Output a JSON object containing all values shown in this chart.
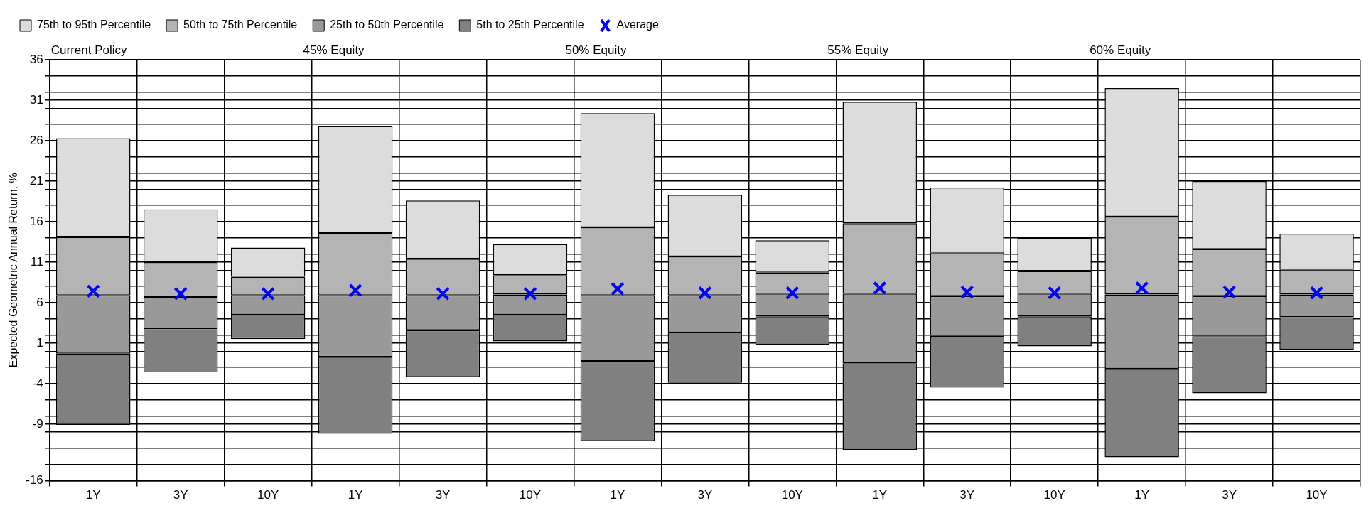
{
  "chart_data": {
    "type": "bar",
    "ylabel": "Expected Geometric Annual Return, %",
    "categories": [
      "1Y",
      "3Y",
      "10Y",
      "1Y",
      "3Y",
      "10Y",
      "1Y",
      "3Y",
      "10Y",
      "1Y",
      "3Y",
      "10Y",
      "1Y",
      "3Y",
      "10Y"
    ],
    "annotations": [
      "Current Policy",
      "45% Equity",
      "50% Equity",
      "55% Equity",
      "60% Equity"
    ],
    "series": [
      {
        "name": "75th to 95th Percentile",
        "color": "#dcdcdc",
        "base": [
          14.1,
          11.0,
          9.2,
          14.6,
          11.4,
          9.4,
          15.3,
          11.7,
          9.7,
          15.8,
          12.2,
          9.9,
          16.6,
          12.6,
          10.1
        ],
        "values": [
          12.2,
          6.5,
          3.6,
          13.2,
          7.2,
          3.8,
          14.1,
          7.6,
          4.0,
          15.0,
          8.0,
          4.1,
          15.9,
          8.4,
          4.4
        ]
      },
      {
        "name": "50th to 75th Percentile",
        "color": "#b4b4b4",
        "base": [
          6.9,
          6.7,
          6.9,
          6.9,
          6.9,
          7.0,
          6.9,
          6.9,
          7.1,
          7.1,
          6.8,
          7.1,
          7.0,
          6.8,
          7.0
        ],
        "values": [
          7.2,
          4.3,
          2.3,
          7.7,
          4.5,
          2.4,
          8.4,
          4.8,
          2.6,
          8.7,
          5.4,
          2.8,
          9.6,
          5.8,
          3.1
        ]
      },
      {
        "name": "25th to 50th Percentile",
        "color": "#999999",
        "base": [
          -0.3,
          2.7,
          4.5,
          -0.7,
          2.6,
          4.5,
          -1.2,
          2.3,
          4.3,
          -1.5,
          1.9,
          4.3,
          -2.2,
          1.8,
          4.2
        ],
        "values": [
          7.2,
          4.0,
          2.4,
          7.6,
          4.3,
          2.5,
          8.1,
          4.6,
          2.8,
          8.6,
          4.9,
          2.8,
          9.2,
          5.0,
          2.8
        ]
      },
      {
        "name": "5th to 25th Percentile",
        "color": "#808080",
        "base": [
          -9.1,
          -2.6,
          1.5,
          -10.2,
          -3.2,
          1.2,
          -11.1,
          -3.9,
          0.8,
          -12.2,
          -4.5,
          0.6,
          -13.1,
          -5.2,
          0.2
        ],
        "values": [
          8.8,
          5.3,
          3.0,
          9.5,
          5.8,
          3.3,
          9.9,
          6.2,
          3.5,
          10.7,
          6.4,
          3.7,
          10.9,
          7.0,
          4.0
        ]
      },
      {
        "name": "Average",
        "type": "scatter",
        "color": "#0000ff",
        "marker": "cross",
        "values": [
          7.4,
          7.1,
          7.1,
          7.5,
          7.1,
          7.1,
          7.7,
          7.2,
          7.2,
          7.8,
          7.3,
          7.2,
          7.8,
          7.3,
          7.2
        ]
      }
    ],
    "ylim": [
      -16,
      36
    ],
    "yticks": [
      -16,
      {
        "value": -14,
        "label": null
      },
      {
        "value": -12,
        "label": null
      },
      {
        "value": -10,
        "label": null
      },
      -9,
      {
        "value": -8,
        "label": null
      },
      {
        "value": -6,
        "label": null
      },
      -4,
      {
        "value": -2,
        "label": null
      },
      {
        "value": 0,
        "label": null
      },
      1,
      {
        "value": 2,
        "label": null
      },
      {
        "value": 4,
        "label": null
      },
      6,
      {
        "value": 8,
        "label": null
      },
      {
        "value": 10,
        "label": null
      },
      11,
      {
        "value": 12,
        "label": null
      },
      {
        "value": 14,
        "label": null
      },
      16,
      {
        "value": 18,
        "label": null
      },
      {
        "value": 20,
        "label": null
      },
      21,
      {
        "value": 22,
        "label": null
      },
      {
        "value": 24,
        "label": null
      },
      26,
      {
        "value": 28,
        "label": null
      },
      {
        "value": 30,
        "label": null
      },
      31,
      {
        "value": 32,
        "label": null
      },
      {
        "value": 34,
        "label": null
      },
      36
    ],
    "grid": true,
    "legend": "top"
  }
}
